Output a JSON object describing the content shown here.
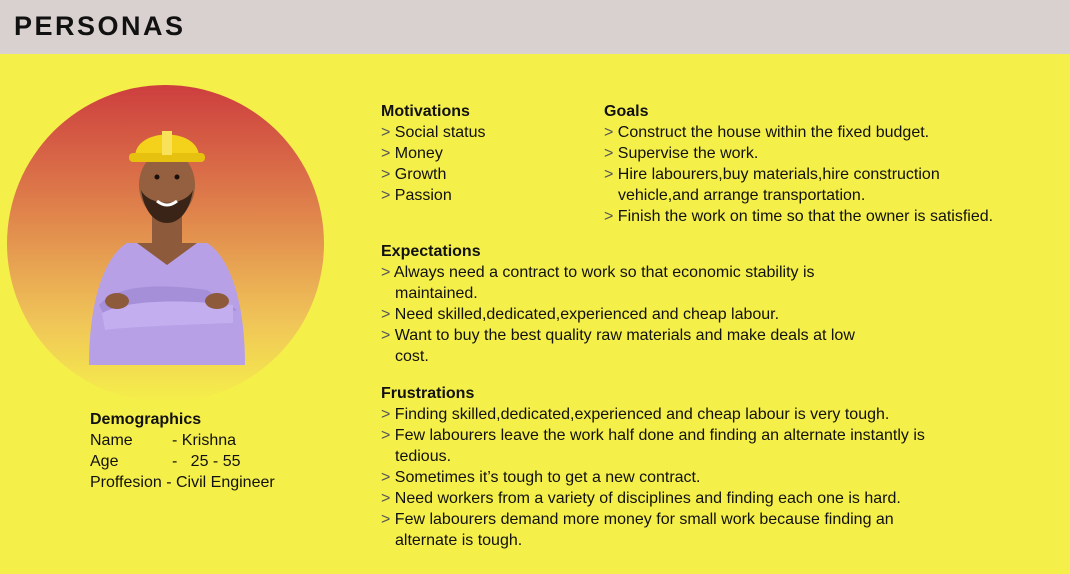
{
  "header": {
    "title": "PERSONAS"
  },
  "demographics": {
    "heading": "Demographics",
    "rows": [
      {
        "key": "Name",
        "sep": "-",
        "value": "Krishna"
      },
      {
        "key": "Age",
        "sep": "-",
        "value": "25 - 55"
      },
      {
        "key": "Proffesion",
        "sep": "-",
        "value": "Civil Engineer"
      }
    ]
  },
  "motivations": {
    "heading": "Motivations",
    "items": [
      "Social status",
      "Money",
      "Growth",
      "Passion"
    ]
  },
  "goals": {
    "heading": "Goals",
    "items": [
      [
        "Construct the house within the fixed budget."
      ],
      [
        "Supervise the work."
      ],
      [
        "Hire labourers,buy materials,hire construction",
        "vehicle,and arrange transportation."
      ],
      [
        "Finish the work on time so that the owner is satisfied."
      ]
    ]
  },
  "expectations": {
    "heading": "Expectations",
    "items": [
      [
        "Always need a contract to work so that economic stability is",
        "maintained."
      ],
      [
        "Need skilled,dedicated,experienced and cheap labour."
      ],
      [
        "Want to buy the best quality raw materials and make deals at low",
        "cost."
      ]
    ]
  },
  "frustrations": {
    "heading": "Frustrations",
    "items": [
      [
        "Finding skilled,dedicated,experienced and cheap labour is very tough."
      ],
      [
        "Few labourers leave the work half done and finding an alternate instantly is",
        "tedious."
      ],
      [
        "Sometimes it’s tough to get a new contract."
      ],
      [
        "Need workers from a variety of disciplines and finding each one is hard."
      ],
      [
        "Few labourers demand more money for small work because finding an",
        "alternate is tough."
      ]
    ]
  },
  "bullet": ">"
}
